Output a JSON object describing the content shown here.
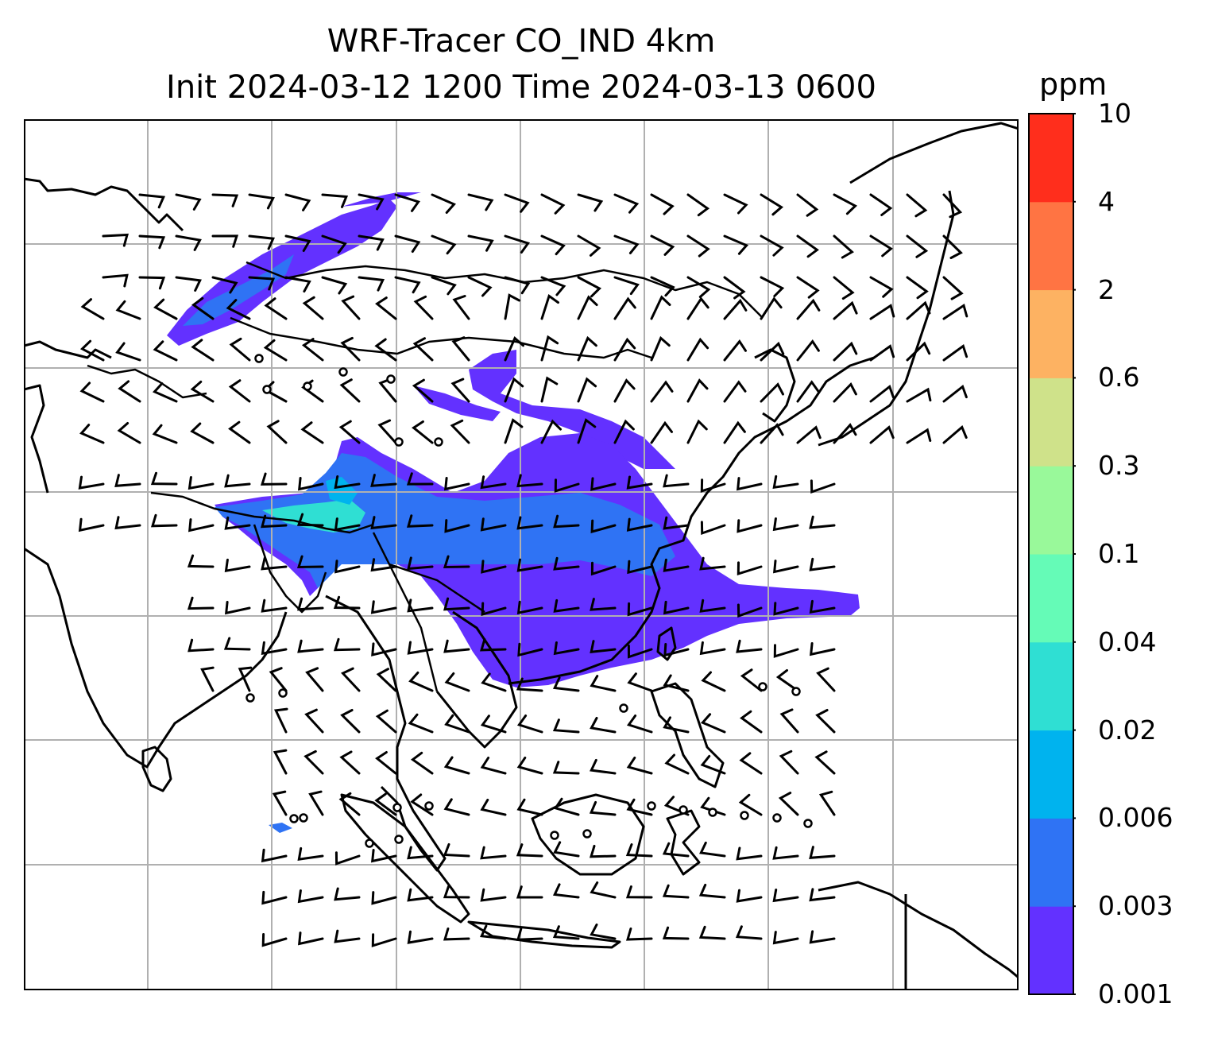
{
  "title": {
    "line1": "WRF-Tracer CO_IND 4km",
    "line2": "Init 2024-03-12 1200 Time 2024-03-13 0600"
  },
  "colorbar": {
    "unit": "ppm",
    "ticks": [
      "0.001",
      "0.003",
      "0.006",
      "0.02",
      "0.04",
      "0.1",
      "0.3",
      "0.6",
      "2",
      "4",
      "10"
    ],
    "colors": [
      "#6331ff",
      "#2f73f4",
      "#00b3ee",
      "#2fdfd3",
      "#65fbb7",
      "#99f99a",
      "#cfe28a",
      "#fdb262",
      "#ff7443",
      "#ff2e1c"
    ]
  },
  "map": {
    "projection_frame_color": "#000000",
    "gridline_color": "#b0b0b0",
    "coastline_color": "#000000"
  }
}
